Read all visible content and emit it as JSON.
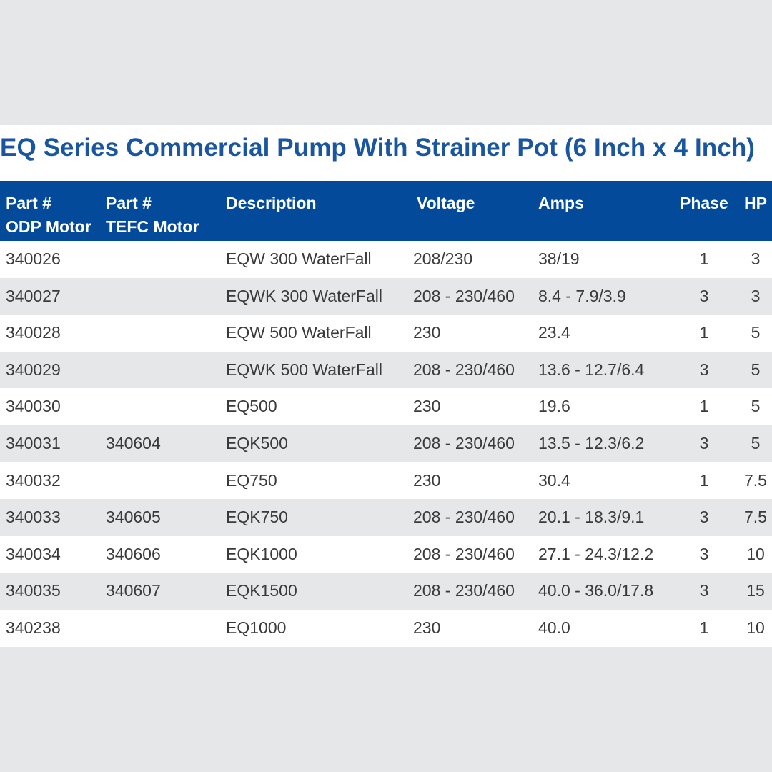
{
  "title": "EQ Series Commercial Pump With Strainer Pot (6 Inch x 4 Inch)",
  "columns": [
    {
      "line1": "Part #",
      "line2": "ODP Motor"
    },
    {
      "line1": "Part #",
      "line2": "TEFC Motor"
    },
    {
      "line1": "Description",
      "line2": ""
    },
    {
      "line1": "Voltage",
      "line2": ""
    },
    {
      "line1": "Amps",
      "line2": ""
    },
    {
      "line1": "Phase",
      "line2": ""
    },
    {
      "line1": "HP",
      "line2": ""
    }
  ],
  "rows": [
    [
      "340026",
      "",
      "EQW 300 WaterFall",
      "208/230",
      "38/19",
      "1",
      "3"
    ],
    [
      "340027",
      "",
      "EQWK 300 WaterFall",
      "208 - 230/460",
      "8.4 - 7.9/3.9",
      "3",
      "3"
    ],
    [
      "340028",
      "",
      "EQW 500 WaterFall",
      "230",
      "23.4",
      "1",
      "5"
    ],
    [
      "340029",
      "",
      "EQWK 500 WaterFall",
      "208 - 230/460",
      "13.6 - 12.7/6.4",
      "3",
      "5"
    ],
    [
      "340030",
      "",
      "EQ500",
      "230",
      "19.6",
      "1",
      "5"
    ],
    [
      "340031",
      "340604",
      "EQK500",
      "208 - 230/460",
      "13.5 - 12.3/6.2",
      "3",
      "5"
    ],
    [
      "340032",
      "",
      "EQ750",
      "230",
      "30.4",
      "1",
      "7.5"
    ],
    [
      "340033",
      "340605",
      "EQK750",
      "208 - 230/460",
      "20.1 - 18.3/9.1",
      "3",
      "7.5"
    ],
    [
      "340034",
      "340606",
      "EQK1000",
      "208 - 230/460",
      "27.1 - 24.3/12.2",
      "3",
      "10"
    ],
    [
      "340035",
      "340607",
      "EQK1500",
      "208 - 230/460",
      "40.0 - 36.0/17.8",
      "3",
      "15"
    ],
    [
      "340238",
      "",
      "EQ1000",
      "230",
      "40.0",
      "1",
      "10"
    ]
  ],
  "colors": {
    "title": "#1a56a0",
    "header_bg": "#034a9a",
    "row_alt_bg": "#e6e7e9",
    "page_bg": "#e6e7e9"
  }
}
